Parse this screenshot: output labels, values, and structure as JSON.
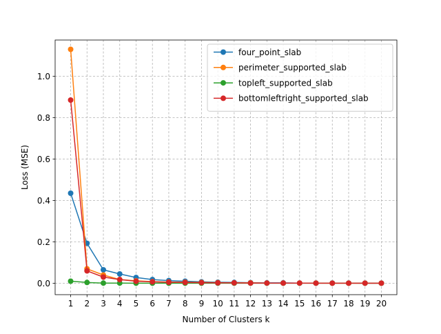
{
  "chart_data": {
    "type": "line",
    "title": "",
    "xlabel": "Number of Clusters k",
    "ylabel": "Loss (MSE)",
    "x": [
      1,
      2,
      3,
      4,
      5,
      6,
      7,
      8,
      9,
      10,
      11,
      12,
      13,
      14,
      15,
      16,
      17,
      18,
      19,
      20
    ],
    "xlim": [
      0.05,
      20.95
    ],
    "ylim": [
      -0.055,
      1.175
    ],
    "yticks": [
      0.0,
      0.2,
      0.4,
      0.6,
      0.8,
      1.0
    ],
    "grid": true,
    "legend_position": "top-right",
    "series": [
      {
        "name": "four_point_slab",
        "color": "#1f77b4",
        "values": [
          0.435,
          0.193,
          0.065,
          0.045,
          0.028,
          0.018,
          0.013,
          0.01,
          0.007,
          0.005,
          0.004,
          0.003,
          0.002,
          0.002,
          0.001,
          0.001,
          0.001,
          0.001,
          0.0005,
          0.0005
        ]
      },
      {
        "name": "perimeter_supported_slab",
        "color": "#ff7f0e",
        "values": [
          1.13,
          0.07,
          0.04,
          0.018,
          0.012,
          0.008,
          0.006,
          0.005,
          0.004,
          0.003,
          0.002,
          0.002,
          0.001,
          0.001,
          0.001,
          0.001,
          0.0005,
          0.0005,
          0.0005,
          0.0005
        ]
      },
      {
        "name": "topleft_supported_slab",
        "color": "#2ca02c",
        "values": [
          0.01,
          0.004,
          0.001,
          0.001,
          0.0005,
          0.0005,
          0.0005,
          0.0005,
          0.0005,
          0.0005,
          0.0005,
          0.0005,
          0.0005,
          0.0005,
          0.0005,
          0.0005,
          0.0005,
          0.0005,
          0.0005,
          0.0005
        ]
      },
      {
        "name": "bottomleftright_supported_slab",
        "color": "#d62728",
        "values": [
          0.885,
          0.06,
          0.03,
          0.018,
          0.01,
          0.007,
          0.005,
          0.004,
          0.003,
          0.002,
          0.002,
          0.001,
          0.001,
          0.001,
          0.001,
          0.0005,
          0.0005,
          0.0005,
          0.0005,
          0.0005
        ]
      }
    ]
  }
}
